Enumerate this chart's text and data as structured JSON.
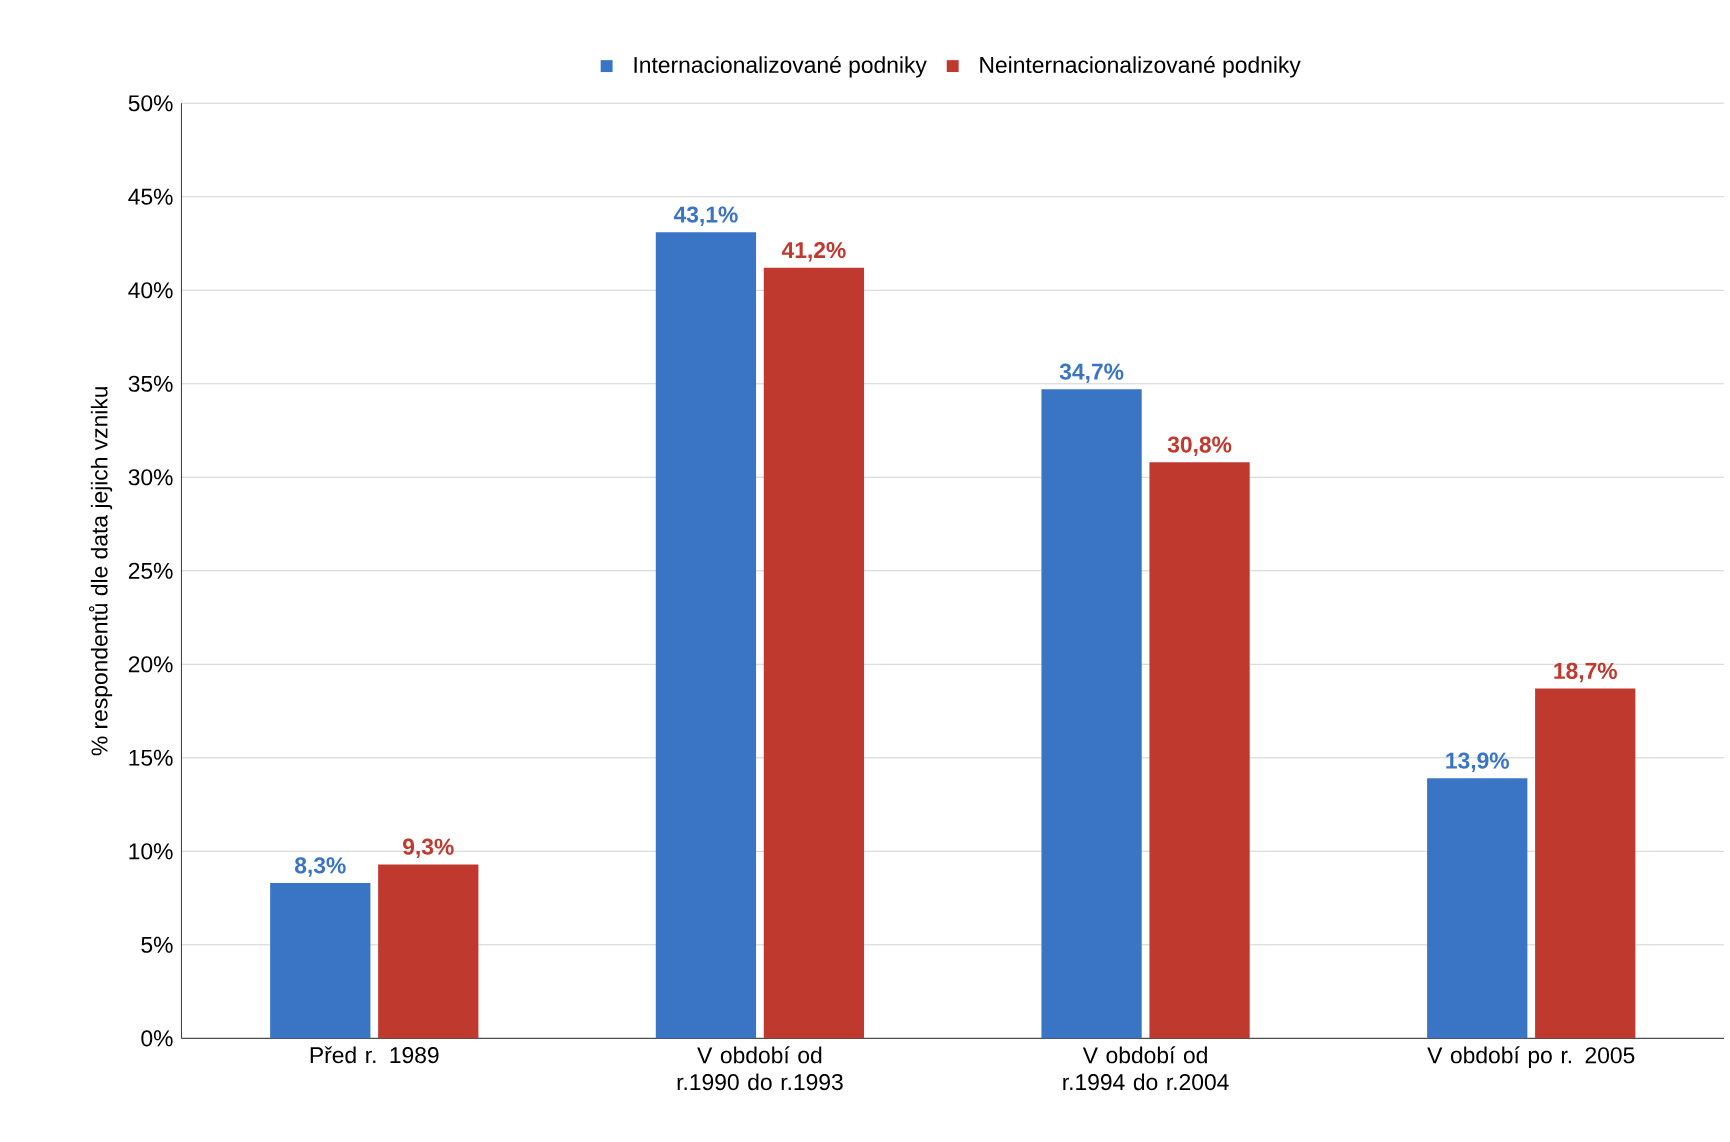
{
  "chart_data": {
    "type": "bar",
    "ylabel": "% respondentů dle data jejich vzniku",
    "categories": [
      "Před r. 1989",
      "V období od r.1990 do r.1993",
      "V období od r.1994 do r.2004",
      "V období po r. 2005"
    ],
    "series": [
      {
        "name": "Internacionalizované podniky",
        "color": "#3a74c4",
        "values": [
          8.3,
          43.1,
          34.7,
          13.9
        ],
        "value_labels": [
          "8,3%",
          "43,1%",
          "34,7%",
          "13,9%"
        ]
      },
      {
        "name": "Neinternacionalizované podniky",
        "color": "#c0392f",
        "values": [
          9.3,
          41.2,
          30.8,
          18.7
        ],
        "value_labels": [
          "9,3%",
          "41,2%",
          "30,8%",
          "18,7%"
        ]
      }
    ],
    "ylim": [
      0,
      50
    ],
    "yticks": [
      {
        "value": 0,
        "label": "0%"
      },
      {
        "value": 5,
        "label": "5%"
      },
      {
        "value": 10,
        "label": "10%"
      },
      {
        "value": 15,
        "label": "15%"
      },
      {
        "value": 20,
        "label": "20%"
      },
      {
        "value": 25,
        "label": "25%"
      },
      {
        "value": 30,
        "label": "30%"
      },
      {
        "value": 35,
        "label": "35%"
      },
      {
        "value": 40,
        "label": "40%"
      },
      {
        "value": 45,
        "label": "45%"
      },
      {
        "value": 50,
        "label": "50%"
      }
    ],
    "grid": "y",
    "legend": "top"
  }
}
